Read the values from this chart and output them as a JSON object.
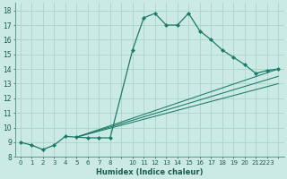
{
  "xlabel": "Humidex (Indice chaleur)",
  "bg_color": "#cceae4",
  "line_color": "#1a7a6a",
  "grid_color": "#aad4cc",
  "ylim": [
    8,
    18.5
  ],
  "xlim": [
    -0.5,
    23.5
  ],
  "yticks": [
    8,
    9,
    10,
    11,
    12,
    13,
    14,
    15,
    16,
    17,
    18
  ],
  "xticks": [
    0,
    1,
    2,
    3,
    4,
    5,
    6,
    7,
    8,
    9,
    10,
    11,
    12,
    13,
    14,
    15,
    16,
    17,
    18,
    19,
    20,
    21,
    22,
    23
  ],
  "xtick_labels": [
    "0",
    "1",
    "2",
    "3",
    "4",
    "5",
    "6",
    "7",
    "8",
    "",
    "10",
    "11",
    "12",
    "13",
    "14",
    "15",
    "16",
    "17",
    "18",
    "19",
    "20",
    "21",
    "2223",
    ""
  ],
  "curve_main": {
    "x": [
      0,
      1,
      2,
      3,
      4,
      5,
      6,
      7,
      8,
      10,
      11,
      12,
      13,
      14,
      15,
      16,
      17,
      18,
      19,
      20,
      21,
      22,
      23
    ],
    "y": [
      9.0,
      8.8,
      8.5,
      8.8,
      9.4,
      9.35,
      9.3,
      9.3,
      9.3,
      15.3,
      17.5,
      17.8,
      17.0,
      17.0,
      17.8,
      16.6,
      16.0,
      15.3,
      14.8,
      14.3,
      13.7,
      13.9,
      14.0
    ]
  },
  "curve_lines": [
    {
      "x": [
        5,
        23
      ],
      "y": [
        9.35,
        14.0
      ]
    },
    {
      "x": [
        5,
        23
      ],
      "y": [
        9.35,
        13.5
      ]
    },
    {
      "x": [
        5,
        23
      ],
      "y": [
        9.35,
        13.0
      ]
    }
  ]
}
